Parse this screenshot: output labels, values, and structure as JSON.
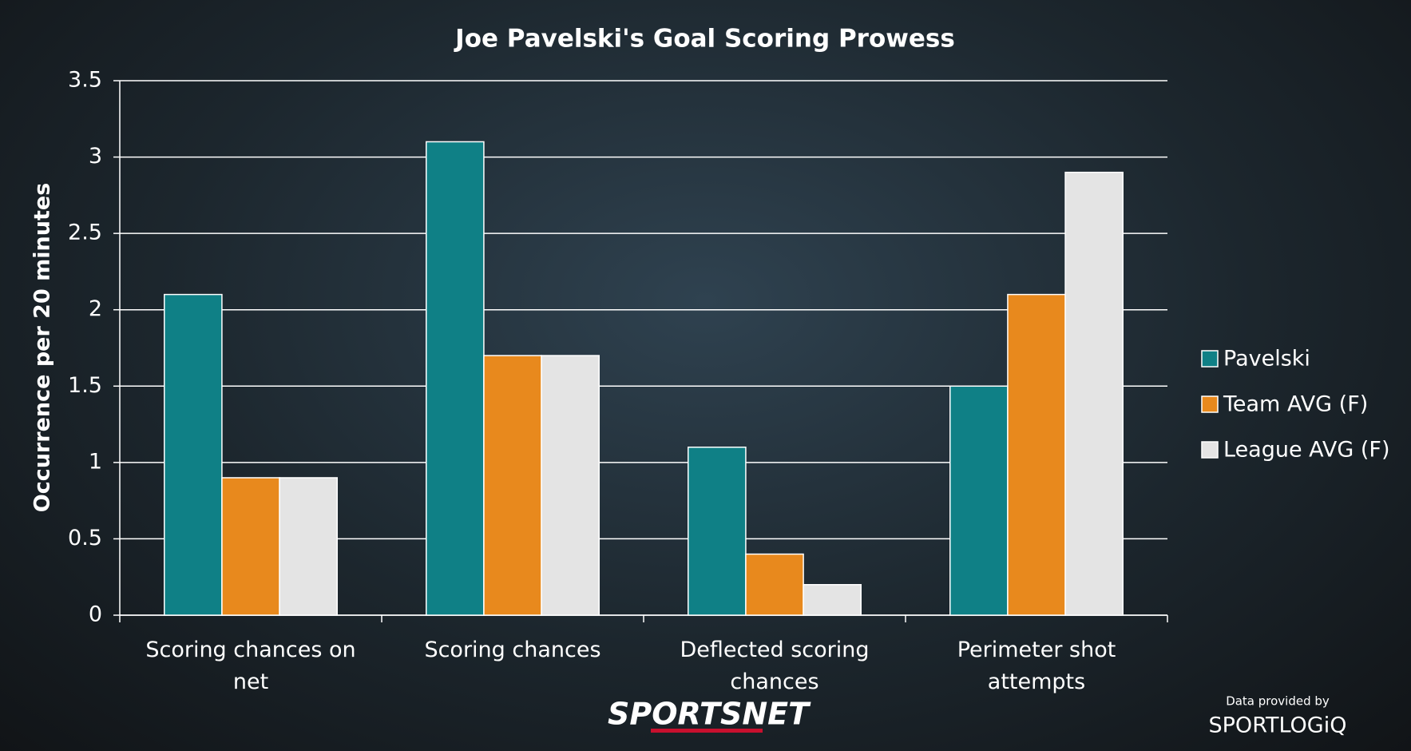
{
  "chart_data": {
    "type": "bar",
    "title": "Joe Pavelski's Goal Scoring Prowess",
    "y_label": "Occurrence per 20 minutes",
    "categories": [
      "Scoring chances on net",
      "Scoring chances",
      "Deflected scoring chances",
      "Perimeter shot attempts"
    ],
    "series": [
      {
        "name": "Pavelski",
        "color": "#0f8086",
        "values": [
          2.1,
          3.1,
          1.1,
          1.5
        ]
      },
      {
        "name": "Team AVG (F)",
        "color": "#e8891d",
        "values": [
          0.9,
          1.7,
          0.4,
          2.1
        ]
      },
      {
        "name": "League AVG (F)",
        "color": "#e4e4e4",
        "values": [
          0.9,
          1.7,
          0.2,
          2.9
        ]
      }
    ],
    "ylim": [
      0,
      3.5
    ],
    "yticks": [
      0,
      0.5,
      1,
      1.5,
      2,
      2.5,
      3,
      3.5
    ],
    "grid": true,
    "legend": "right"
  },
  "branding": {
    "logo": "SPORTSNET",
    "credit": "Data provided by",
    "provider": "SPORTLOGiQ"
  }
}
